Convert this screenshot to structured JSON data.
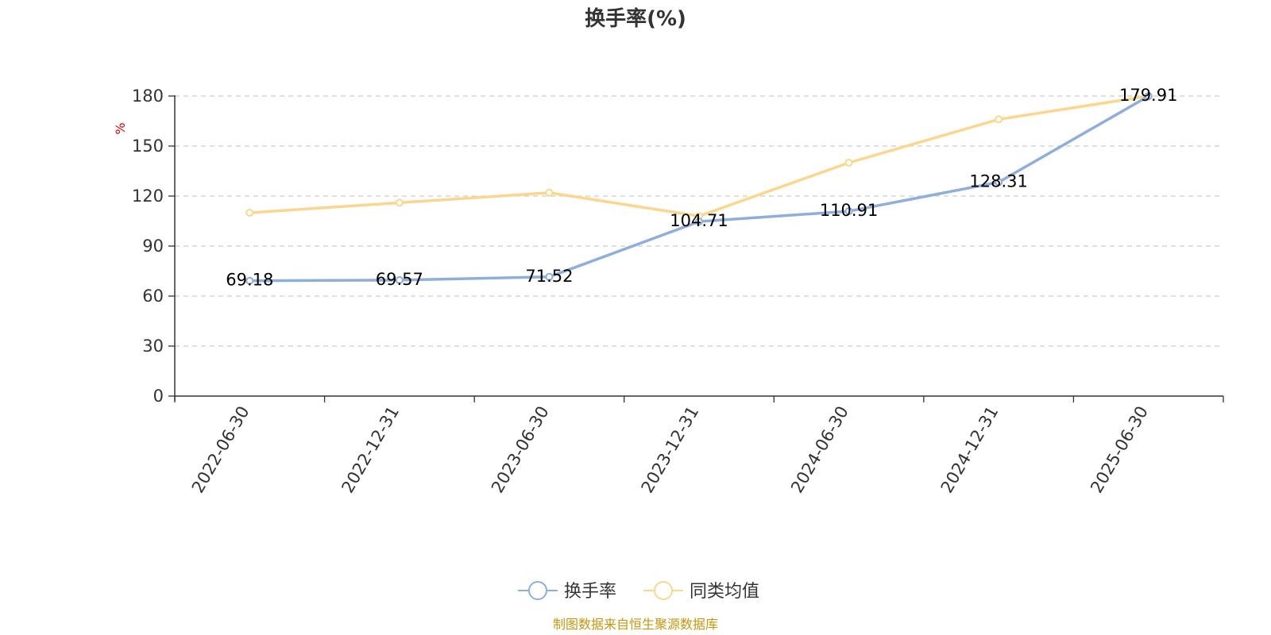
{
  "chart_data": {
    "type": "line",
    "title": "换手率(%)",
    "ylabel": "%",
    "ylim": [
      0,
      180
    ],
    "yticks": [
      0,
      30,
      60,
      90,
      120,
      150,
      180
    ],
    "grid": "horizontal-dashed",
    "legend_position": "bottom-center",
    "categories": [
      "2022-06-30",
      "2022-12-31",
      "2023-06-30",
      "2023-12-31",
      "2024-06-30",
      "2024-12-31",
      "2025-06-30"
    ],
    "series": [
      {
        "name": "换手率",
        "color": "#8eaedb",
        "show_labels": true,
        "values": [
          69.18,
          69.57,
          71.52,
          104.71,
          110.91,
          128.31,
          179.91
        ]
      },
      {
        "name": "同类均值",
        "color": "#fbd78e",
        "show_labels": false,
        "values": [
          110,
          116,
          122,
          108,
          140,
          166,
          180
        ]
      }
    ]
  },
  "footer": {
    "source": "制图数据来自恒生聚源数据库"
  }
}
